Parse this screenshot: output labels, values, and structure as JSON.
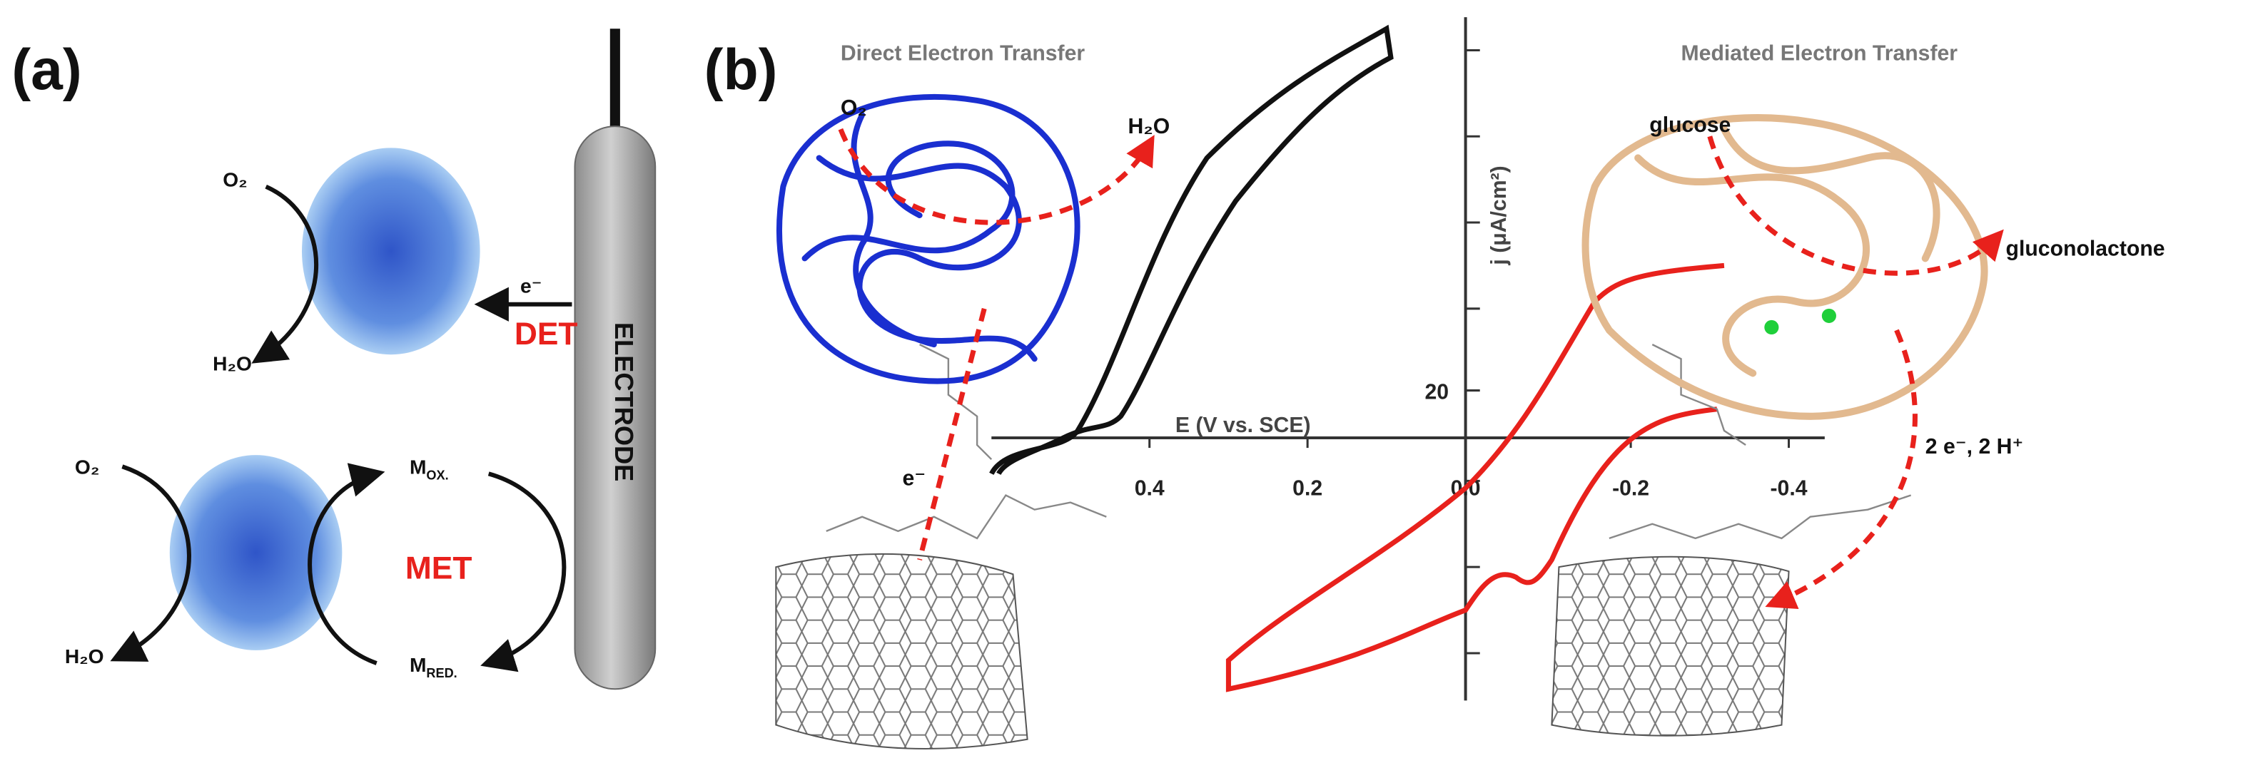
{
  "panel_a": {
    "label": "(a)",
    "det": {
      "o2": "O₂",
      "h2o": "H₂O",
      "electron": "e⁻",
      "name": "DET"
    },
    "electrode": "ELECTRODE",
    "met": {
      "o2": "O₂",
      "h2o": "H₂O",
      "m_ox": {
        "base": "M",
        "sub": "OX."
      },
      "m_red": {
        "base": "M",
        "sub": "RED."
      },
      "name": "MET"
    }
  },
  "panel_b": {
    "label": "(b)",
    "left_title": "Direct Electron Transfer",
    "right_title": "Mediated Electron Transfer",
    "det": {
      "o2": "O₂",
      "h2o": "H₂O",
      "electron": "e⁻"
    },
    "met": {
      "glucose": "glucose",
      "gluconolactone": "gluconolactone",
      "transfer": "2 e⁻, 2 H⁺"
    },
    "x_axis": {
      "label": "E (V vs. SCE)",
      "ticks": [
        "0.4",
        "0.2",
        "0.0",
        "-0.2",
        "-0.4"
      ]
    },
    "y_axis": {
      "label": "j (μA/cm²)",
      "ticks": [
        "20"
      ]
    }
  }
}
